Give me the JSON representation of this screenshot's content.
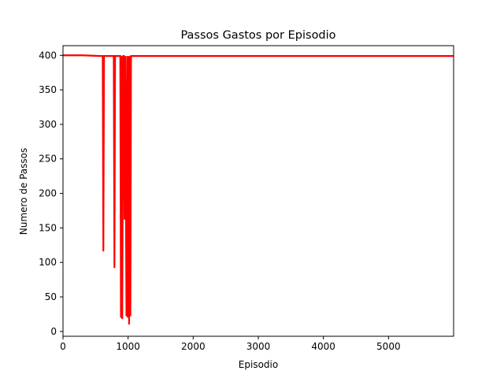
{
  "chart_data": {
    "type": "line",
    "title": "Passos Gastos por Episodio",
    "xlabel": "Episodio",
    "ylabel": "Numero de Passos",
    "xlim": [
      0,
      6000
    ],
    "ylim": [
      -7,
      414
    ],
    "xticks": [
      0,
      1000,
      2000,
      3000,
      4000,
      5000
    ],
    "yticks": [
      0,
      50,
      100,
      150,
      200,
      250,
      300,
      350,
      400
    ],
    "grid": false,
    "legend": "none",
    "series": [
      {
        "color": "#ff0000",
        "x": [
          0,
          300,
          600,
          610,
          620,
          630,
          780,
          790,
          800,
          810,
          880,
          890,
          900,
          910,
          925,
          935,
          945,
          955,
          975,
          985,
          995,
          1005,
          1015,
          1025,
          1035,
          1045,
          1055,
          1065,
          6000
        ],
        "y": [
          400,
          400,
          399,
          399,
          116,
          399,
          399,
          92,
          399,
          399,
          399,
          20,
          399,
          18,
          399,
          399,
          162,
          399,
          22,
          399,
          20,
          399,
          10,
          399,
          22,
          399,
          399,
          399,
          399
        ]
      }
    ]
  }
}
